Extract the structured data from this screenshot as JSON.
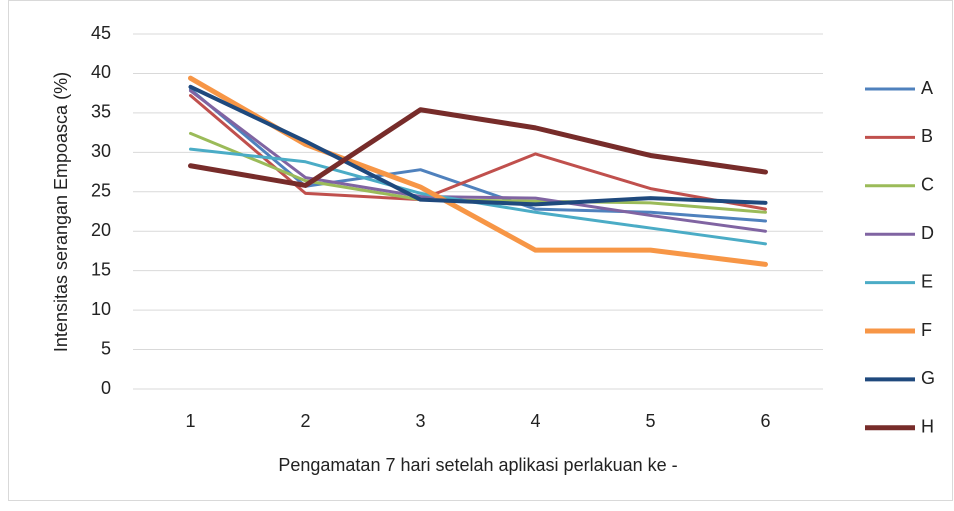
{
  "chart_data": {
    "type": "line",
    "xlabel": "Pengamatan 7 hari setelah aplikasi perlakuan ke -",
    "ylabel": "Intensitas serangan Empoasca (%)",
    "categories": [
      "1",
      "2",
      "3",
      "4",
      "5",
      "6"
    ],
    "ylim": [
      0,
      45
    ],
    "yticks": [
      0,
      5,
      10,
      15,
      20,
      25,
      30,
      35,
      40,
      45
    ],
    "grid": true,
    "legend": "right",
    "series": [
      {
        "name": "A",
        "color": "#4f81bd",
        "width": 3,
        "values": [
          38,
          25.7,
          27.8,
          22.8,
          22.4,
          21.3
        ]
      },
      {
        "name": "B",
        "color": "#c0504d",
        "width": 3,
        "values": [
          37.2,
          24.8,
          24,
          29.8,
          25.4,
          22.8
        ]
      },
      {
        "name": "C",
        "color": "#9bbb59",
        "width": 3,
        "values": [
          32.4,
          26.4,
          24,
          23.8,
          23.6,
          22.4
        ]
      },
      {
        "name": "D",
        "color": "#8064a2",
        "width": 3,
        "values": [
          37.8,
          26.8,
          24.4,
          24.2,
          22,
          20
        ]
      },
      {
        "name": "E",
        "color": "#4bacc6",
        "width": 3,
        "values": [
          30.4,
          28.8,
          24.8,
          22.4,
          20.4,
          18.4
        ]
      },
      {
        "name": "F",
        "color": "#f79646",
        "width": 5,
        "values": [
          39.4,
          31,
          25.6,
          17.6,
          17.6,
          15.8
        ]
      },
      {
        "name": "G",
        "color": "#1f497d",
        "width": 4,
        "values": [
          38.3,
          31.4,
          24,
          23.4,
          24.2,
          23.6
        ]
      },
      {
        "name": "H",
        "color": "#772c2a",
        "width": 5,
        "values": [
          28.3,
          25.8,
          35.4,
          33.1,
          29.6,
          27.5
        ]
      }
    ]
  }
}
